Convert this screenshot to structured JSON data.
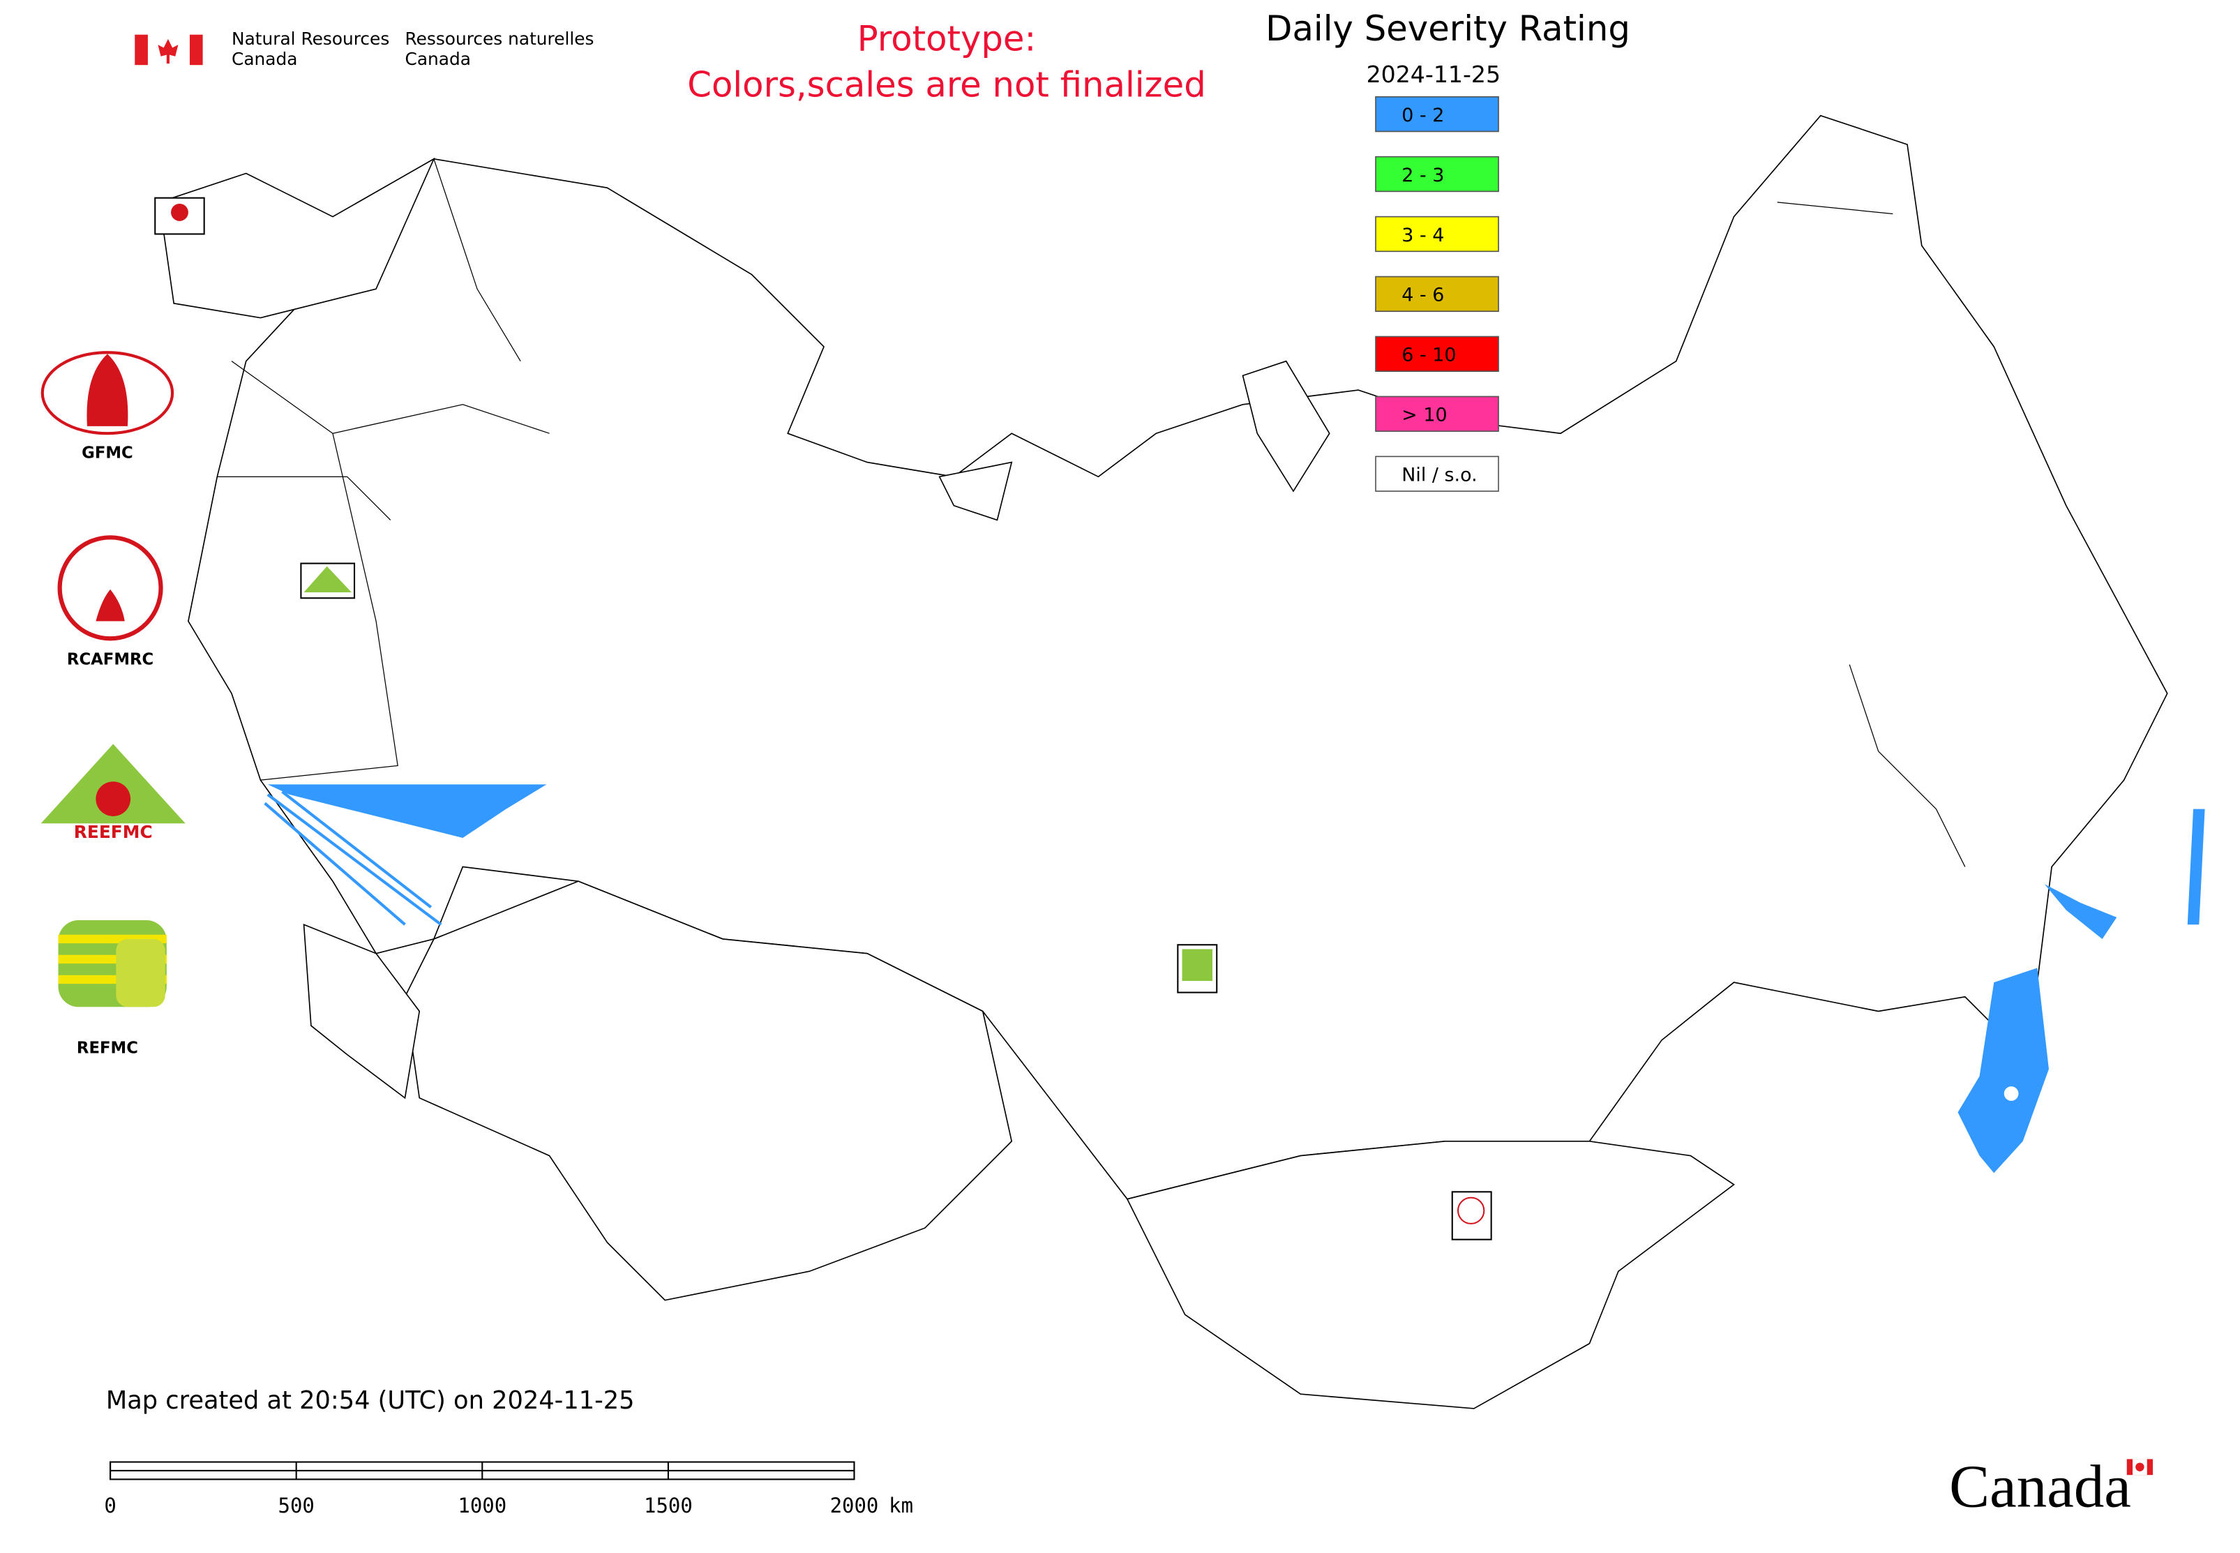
{
  "header": {
    "agency_en_1": "Natural Resources",
    "agency_en_2": "Canada",
    "agency_fr_1": "Ressources naturelles",
    "agency_fr_2": "Canada"
  },
  "notice": {
    "line1": "Prototype:",
    "line2": "Colors,scales are not finalized"
  },
  "legend": {
    "title": "Daily Severity Rating",
    "date": "2024-11-25",
    "items": [
      {
        "label": "0 - 2",
        "color": "#3399ff"
      },
      {
        "label": "2 - 3",
        "color": "#33ff33"
      },
      {
        "label": "3 - 4",
        "color": "#ffff00"
      },
      {
        "label": "4 - 6",
        "color": "#ddbb00"
      },
      {
        "label": "6 - 10",
        "color": "#ff0000"
      },
      {
        "label": "> 10",
        "color": "#ff3399"
      },
      {
        "label": "Nil / s.o.",
        "color": "#ffffff"
      }
    ]
  },
  "logos": {
    "gfmc": "GFMC",
    "rcafmrc": "RCAFMRC",
    "reefmc": "REEFMC",
    "refmc": "REFMC"
  },
  "footer": {
    "created": "Map created at 20:54 (UTC) on 2024-11-25",
    "wordmark": "Canada"
  },
  "scale_bar": {
    "ticks": [
      0,
      500,
      1000,
      1500,
      2000
    ],
    "unit": "km"
  }
}
